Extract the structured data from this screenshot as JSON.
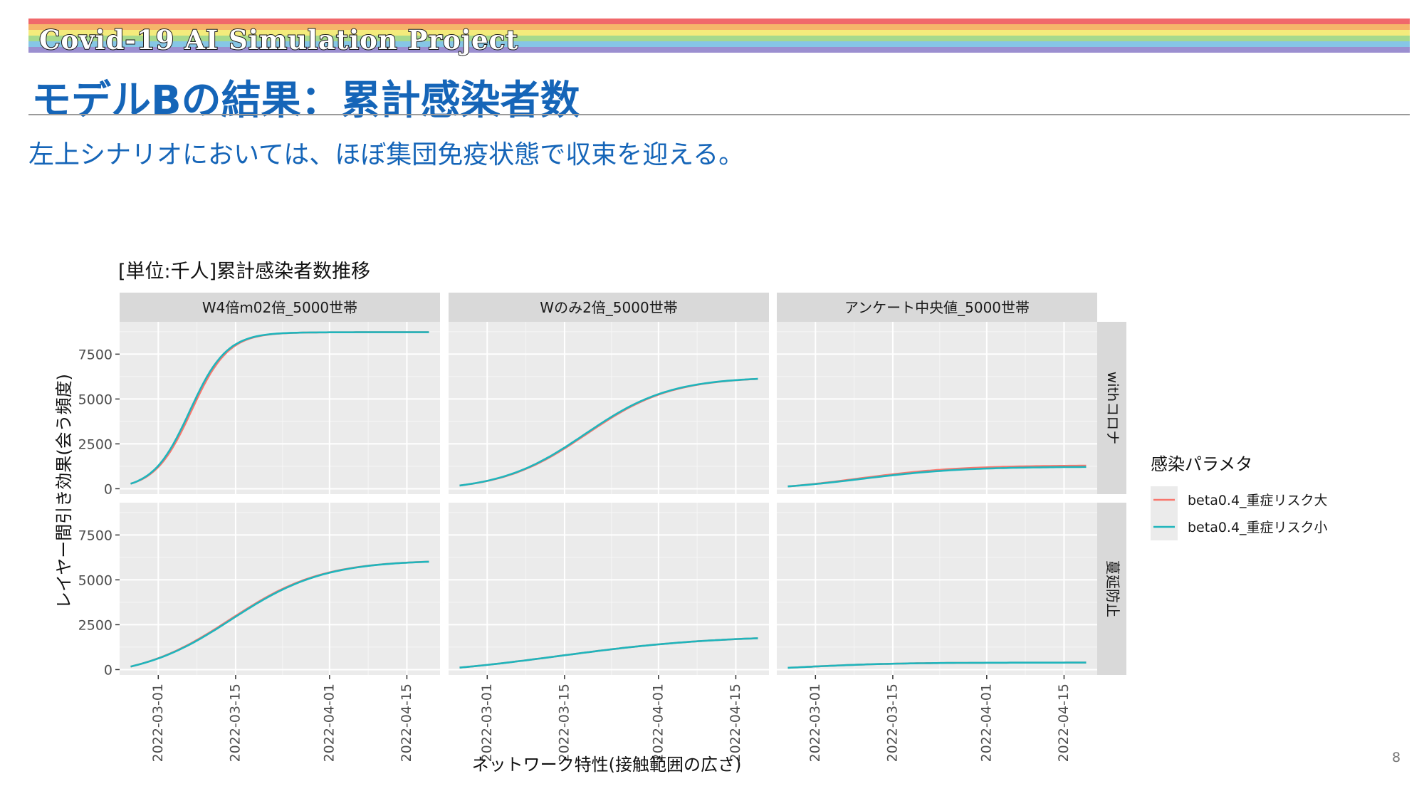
{
  "header": {
    "brand": "Covid-19 AI Simulation Project",
    "rainbow_colors": [
      "#f0686b",
      "#f5b56a",
      "#f4eb7c",
      "#a6d98d",
      "#86c6e6",
      "#9b8fd0"
    ],
    "title": "モデルBの結果：累計感染者数",
    "subtitle": "左上シナリオにおいては、ほぼ集団免疫状態で収束を迎える。"
  },
  "page_number": "8",
  "chart_data": {
    "type": "line",
    "title": "[単位:千人]累計感染者数推移",
    "xlabel": "ネットワーク特性(接触範囲の広さ)",
    "ylabel": "レイヤー間引き効果(会う頻度)",
    "column_facets": [
      "W4倍m02倍_5000世帯",
      "Wのみ2倍_5000世帯",
      "アンケート中央値_5000世帯"
    ],
    "row_facets": [
      "withコロナ",
      "蔓延防止"
    ],
    "x_ticks": [
      "2022-03-01",
      "2022-03-15",
      "2022-04-01",
      "2022-04-15"
    ],
    "x_range": [
      "2022-02-22",
      "2022-04-21"
    ],
    "y_ticks": [
      0,
      2500,
      5000,
      7500
    ],
    "ylim": [
      -300,
      9300
    ],
    "grid": true,
    "legend": {
      "title": "感染パラメタ",
      "position": "right",
      "entries": [
        "beta0.4_重症リスク大",
        "beta0.4_重症リスク小"
      ],
      "colors": [
        "#f8766d",
        "#1fb5bc"
      ]
    },
    "panels": [
      {
        "row": 0,
        "col": 0,
        "x0": "2022-02-24",
        "x1": "2022-04-19",
        "y0": 280,
        "L": 8720,
        "k": 0.3,
        "t0": 11,
        "L2": 8720,
        "t02": 10.7
      },
      {
        "row": 0,
        "col": 1,
        "x0": "2022-02-24",
        "x1": "2022-04-19",
        "y0": 180,
        "L": 6230,
        "k": 0.13,
        "t0": 23,
        "L2": 6230,
        "t02": 22.7
      },
      {
        "row": 0,
        "col": 2,
        "x0": "2022-02-24",
        "x1": "2022-04-19",
        "y0": 130,
        "L": 1300,
        "k": 0.11,
        "t0": 13,
        "L2": 1230,
        "t02": 13.5
      },
      {
        "row": 1,
        "col": 0,
        "x0": "2022-02-24",
        "x1": "2022-04-19",
        "y0": 170,
        "L": 6100,
        "k": 0.12,
        "t0": 18,
        "L2": 6100,
        "t02": 18.3
      },
      {
        "row": 1,
        "col": 1,
        "x0": "2022-02-24",
        "x1": "2022-04-19",
        "y0": 110,
        "L": 1920,
        "k": 0.07,
        "t0": 18,
        "L2": 1920,
        "t02": 18
      },
      {
        "row": 1,
        "col": 2,
        "x0": "2022-02-24",
        "x1": "2022-04-19",
        "y0": 100,
        "L": 390,
        "k": 0.12,
        "t0": 3,
        "L2": 390,
        "t02": 3
      }
    ]
  }
}
